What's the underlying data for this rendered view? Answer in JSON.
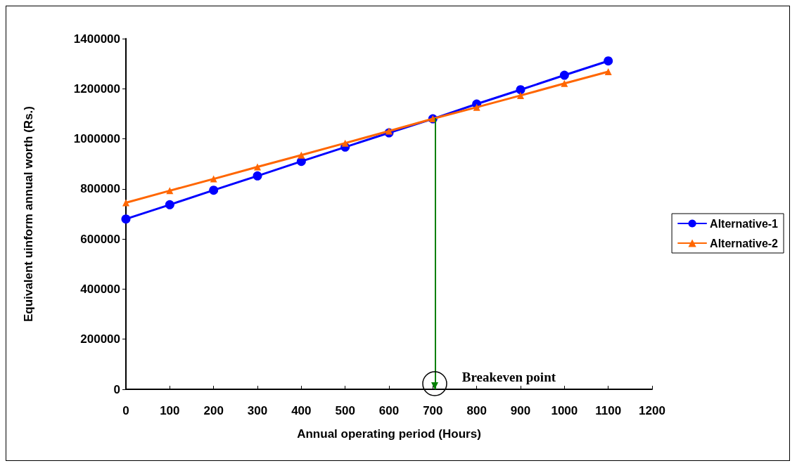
{
  "chart_data": {
    "type": "line",
    "xlabel": "Annual operating period (Hours)",
    "ylabel": "Equivalent uinform annual worth (Rs.)",
    "x": [
      0,
      100,
      200,
      300,
      400,
      500,
      600,
      700,
      800,
      900,
      1000,
      1100
    ],
    "series": [
      {
        "name": "Alternative-1",
        "color": "#0000ff",
        "marker": "circle",
        "values": [
          680000,
          737000,
          795000,
          852000,
          910000,
          967000,
          1024000,
          1080000,
          1139000,
          1196000,
          1254000,
          1311000
        ]
      },
      {
        "name": "Alternative-2",
        "color": "#ff6600",
        "marker": "triangle",
        "values": [
          745000,
          793000,
          840000,
          888000,
          935000,
          983000,
          1031000,
          1080000,
          1126000,
          1173000,
          1221000,
          1268000
        ]
      }
    ],
    "xlim": [
      0,
      1200
    ],
    "xticks": [
      0,
      100,
      200,
      300,
      400,
      500,
      600,
      700,
      800,
      900,
      1000,
      1100,
      1200
    ],
    "ylim": [
      0,
      1400000
    ],
    "yticks": [
      0,
      200000,
      400000,
      600000,
      800000,
      1000000,
      1200000,
      1400000
    ],
    "ref_lines": [
      {
        "axis": "x",
        "value": 705,
        "label": "Breakeven point",
        "color": "#008000"
      }
    ],
    "grid": false,
    "legend": "right",
    "line_style": "solid"
  }
}
